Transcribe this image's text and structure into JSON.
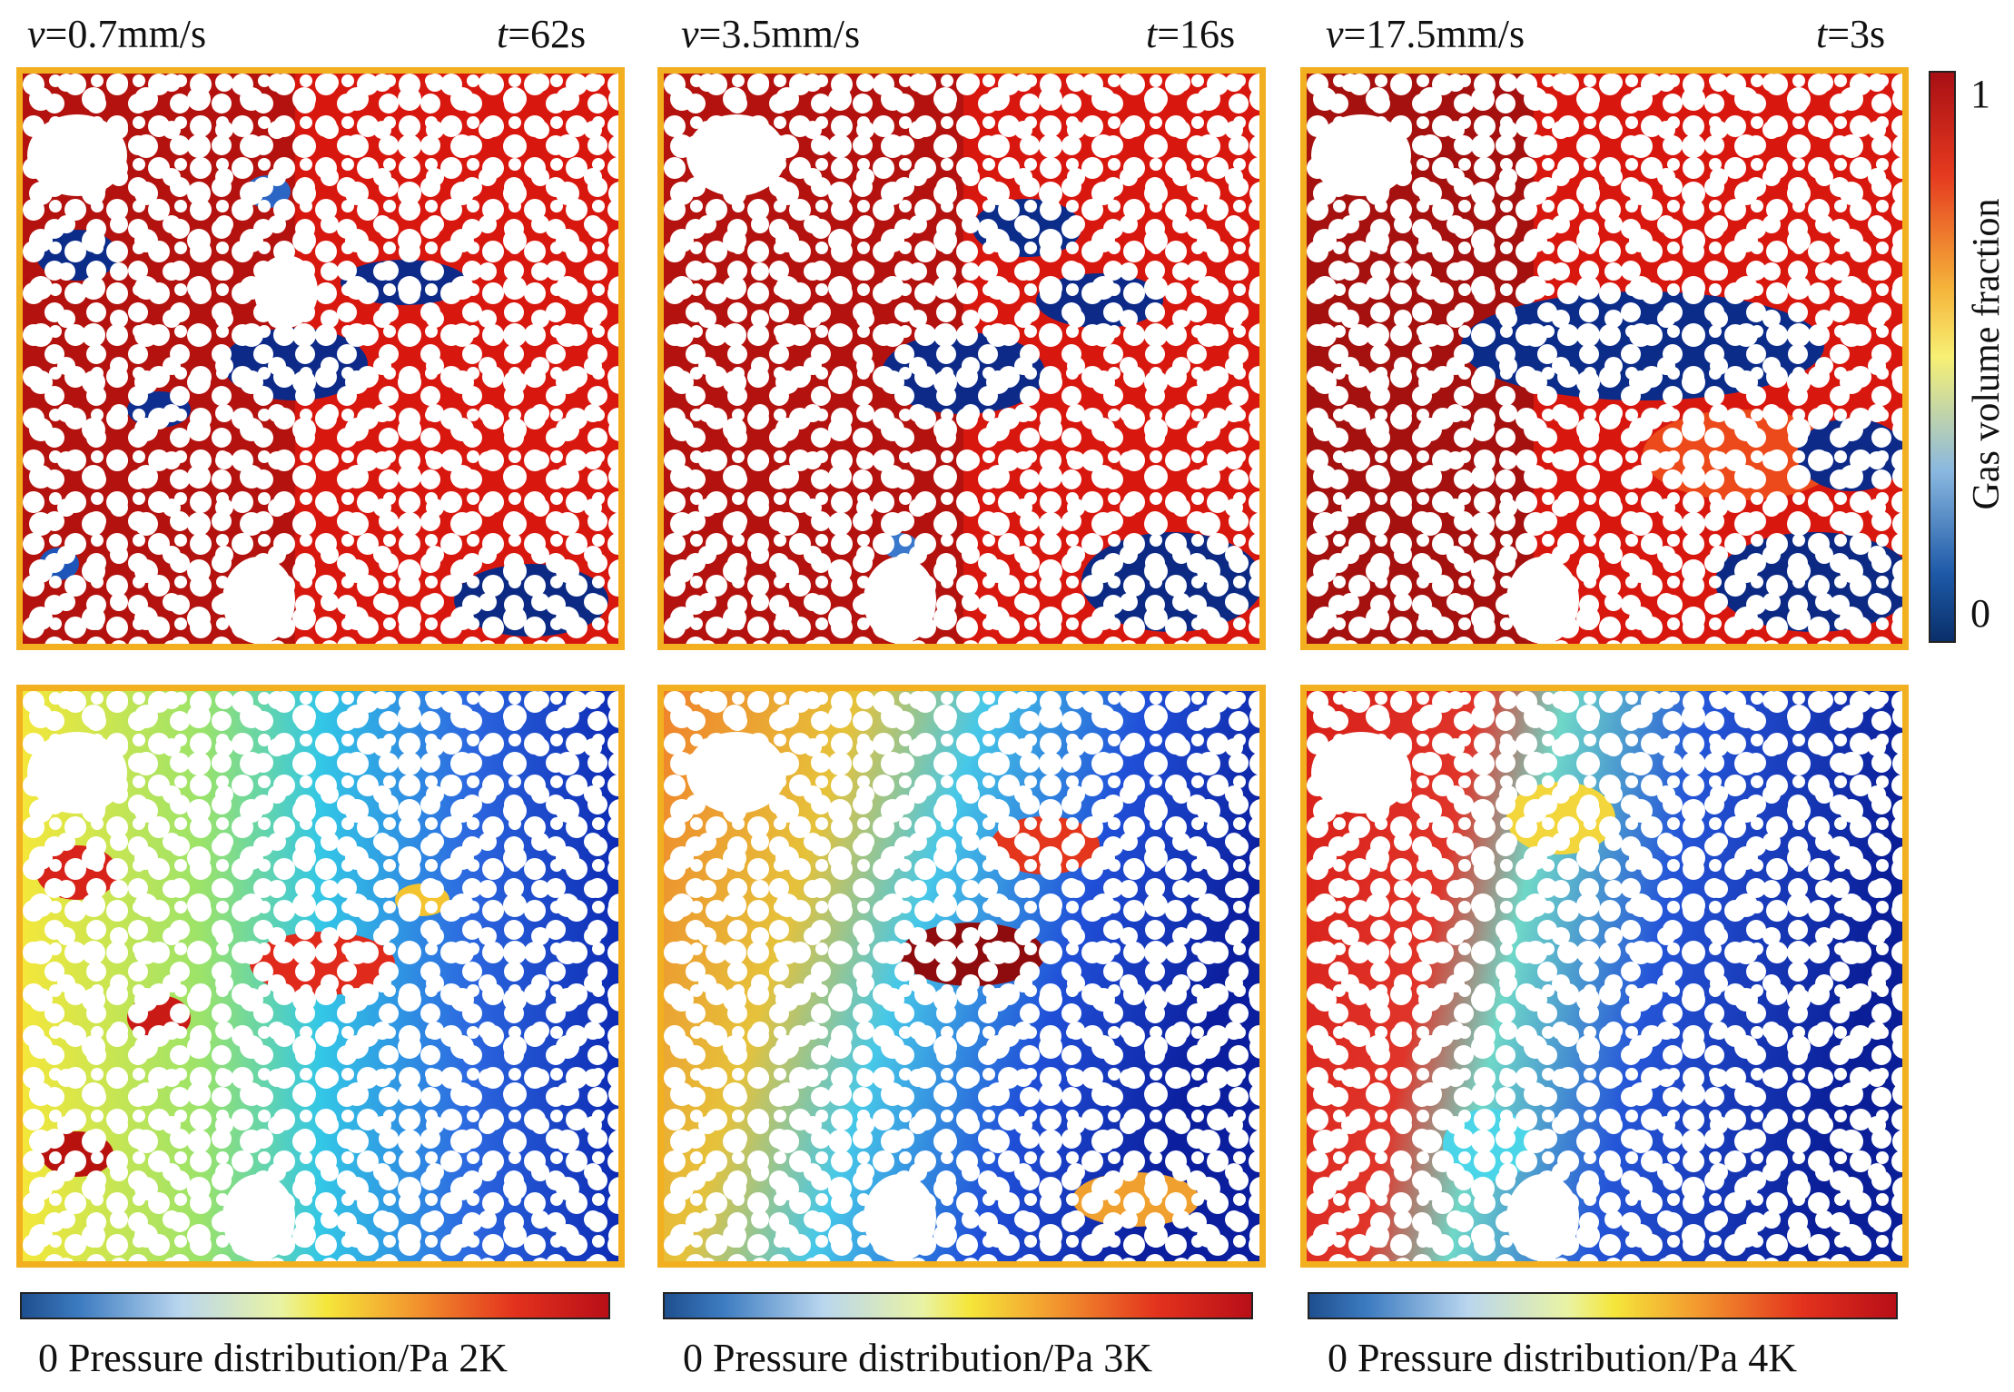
{
  "columns": [
    {
      "v_prefix": "v",
      "v_value": "=0.7mm/s",
      "t_prefix": "t",
      "t_value": "=62s"
    },
    {
      "v_prefix": "v",
      "v_value": "=3.5mm/s",
      "t_prefix": "t",
      "t_value": "=16s"
    },
    {
      "v_prefix": "v",
      "v_value": "=17.5mm/s",
      "t_prefix": "t",
      "t_value": "=3s"
    }
  ],
  "gas_colorbar": {
    "title": "Gas volume fraction",
    "max_label": "1",
    "min_label": "0",
    "colors": [
      "#0a2f6a",
      "#1e5aa8",
      "#8ab8df",
      "#f7f074",
      "#f5b43a",
      "#e53a1f",
      "#a80f14"
    ]
  },
  "pressure_colorbars": [
    {
      "min_label": "0",
      "title": "Pressure distribution/Pa",
      "max_label": "2K"
    },
    {
      "min_label": "0",
      "title": "Pressure distribution/Pa",
      "max_label": "3K"
    },
    {
      "min_label": "0",
      "title": "Pressure distribution/Pa",
      "max_label": "4K"
    }
  ],
  "panel_border_color": "#F2AF1F"
}
